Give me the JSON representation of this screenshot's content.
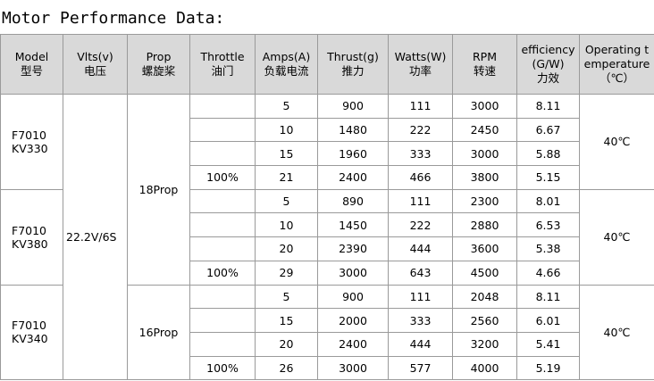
{
  "title": "Motor Performance Data:",
  "table": {
    "header": [
      [
        "Model",
        "型号"
      ],
      [
        "Vlts(v)",
        "电压"
      ],
      [
        "Prop",
        "螺旋桨"
      ],
      [
        "Throttle",
        "油门"
      ],
      [
        "Amps(A)",
        "负载电流"
      ],
      [
        "Thrust(g)",
        "推力"
      ],
      [
        "Watts(W)",
        "功率"
      ],
      [
        "RPM",
        "转速"
      ],
      [
        "efficiency(G/W)",
        "力效"
      ],
      [
        "Operating temperature（℃）"
      ]
    ],
    "voltage": "22.2V/6S",
    "motors": [
      {
        "model": [
          "F7010",
          "KV330"
        ],
        "prop": "18Prop",
        "temperature": "40℃",
        "rows": [
          {
            "amps": 5,
            "thrust": 900,
            "watts": 111,
            "rpm": 3000,
            "efficiency": 8.11
          },
          {
            "amps": 10,
            "thrust": 1480,
            "watts": 222,
            "rpm": 2450,
            "efficiency": 6.67
          },
          {
            "amps": 15,
            "thrust": 1960,
            "watts": 333,
            "rpm": 3000,
            "efficiency": 5.88
          },
          {
            "throttle": "100%",
            "amps": 21,
            "thrust": 2400,
            "watts": 466,
            "rpm": 3800,
            "efficiency": 5.15
          }
        ]
      },
      {
        "model": [
          "F7010",
          "KV380"
        ],
        "temperature": "40℃",
        "rows": [
          {
            "amps": 5,
            "thrust": 890,
            "watts": 111,
            "rpm": 2300,
            "efficiency": 8.01
          },
          {
            "amps": 10,
            "thrust": 1450,
            "watts": 222,
            "rpm": 2880,
            "efficiency": 6.53
          },
          {
            "amps": 20,
            "thrust": 2390,
            "watts": 444,
            "rpm": 3600,
            "efficiency": 5.38
          },
          {
            "throttle": "100%",
            "amps": 29,
            "thrust": 3000,
            "watts": 643,
            "rpm": 4500,
            "efficiency": 4.66
          }
        ]
      },
      {
        "model": [
          "F7010",
          "KV340"
        ],
        "prop": "16Prop",
        "temperature": "40℃",
        "rows": [
          {
            "amps": 5,
            "thrust": 900,
            "watts": 111,
            "rpm": 2048,
            "efficiency": 8.11
          },
          {
            "amps": 15,
            "thrust": 2000,
            "watts": 333,
            "rpm": 2560,
            "efficiency": 6.01
          },
          {
            "amps": 20,
            "thrust": 2400,
            "watts": 444,
            "rpm": 3200,
            "efficiency": 5.41
          },
          {
            "throttle": "100%",
            "amps": 26,
            "thrust": 3000,
            "watts": 577,
            "rpm": 4000,
            "efficiency": 5.19
          }
        ]
      }
    ]
  }
}
